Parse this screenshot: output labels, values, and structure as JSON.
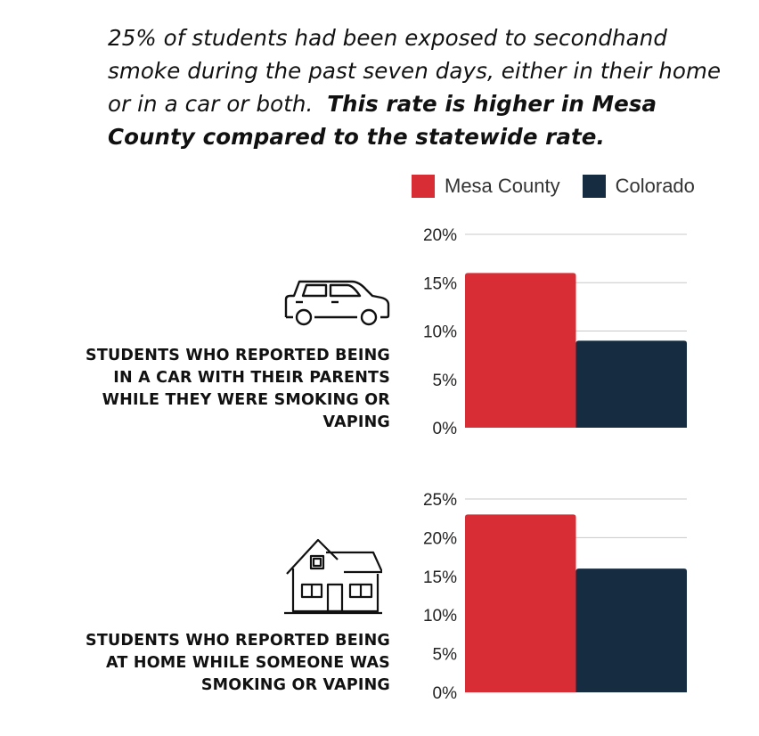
{
  "intro": {
    "text": "25% of students had been exposed to secondhand smoke during the past seven days, either in their home or in a car or both.",
    "bold": "This rate is higher in Mesa County compared to the statewide rate."
  },
  "legend": [
    {
      "name": "Mesa County",
      "color": "#d92d35"
    },
    {
      "name": "Colorado",
      "color": "#152c41"
    }
  ],
  "charts": [
    {
      "label": "STUDENTS WHO REPORTED BEING IN A CAR WITH THEIR PARENTS WHILE THEY WERE SMOKING OR VAPING",
      "icon": "car-icon"
    },
    {
      "label": "STUDENTS WHO REPORTED BEING AT HOME WHILE SOMEONE WAS SMOKING OR VAPING",
      "icon": "house-icon"
    }
  ],
  "chart_data": [
    {
      "type": "bar",
      "categories": [
        ""
      ],
      "series": [
        {
          "name": "Mesa County",
          "values": [
            16
          ],
          "color": "#d92d35"
        },
        {
          "name": "Colorado",
          "values": [
            9
          ],
          "color": "#152c41"
        }
      ],
      "yticks": [
        "0%",
        "5%",
        "10%",
        "15%",
        "20%"
      ],
      "ylim": [
        0,
        20
      ],
      "grid": true,
      "legend": "top"
    },
    {
      "type": "bar",
      "categories": [
        ""
      ],
      "series": [
        {
          "name": "Mesa County",
          "values": [
            23
          ],
          "color": "#d92d35"
        },
        {
          "name": "Colorado",
          "values": [
            16
          ],
          "color": "#152c41"
        }
      ],
      "yticks": [
        "0%",
        "5%",
        "10%",
        "15%",
        "20%",
        "25%"
      ],
      "ylim": [
        0,
        25
      ],
      "grid": true,
      "legend": "top"
    }
  ]
}
